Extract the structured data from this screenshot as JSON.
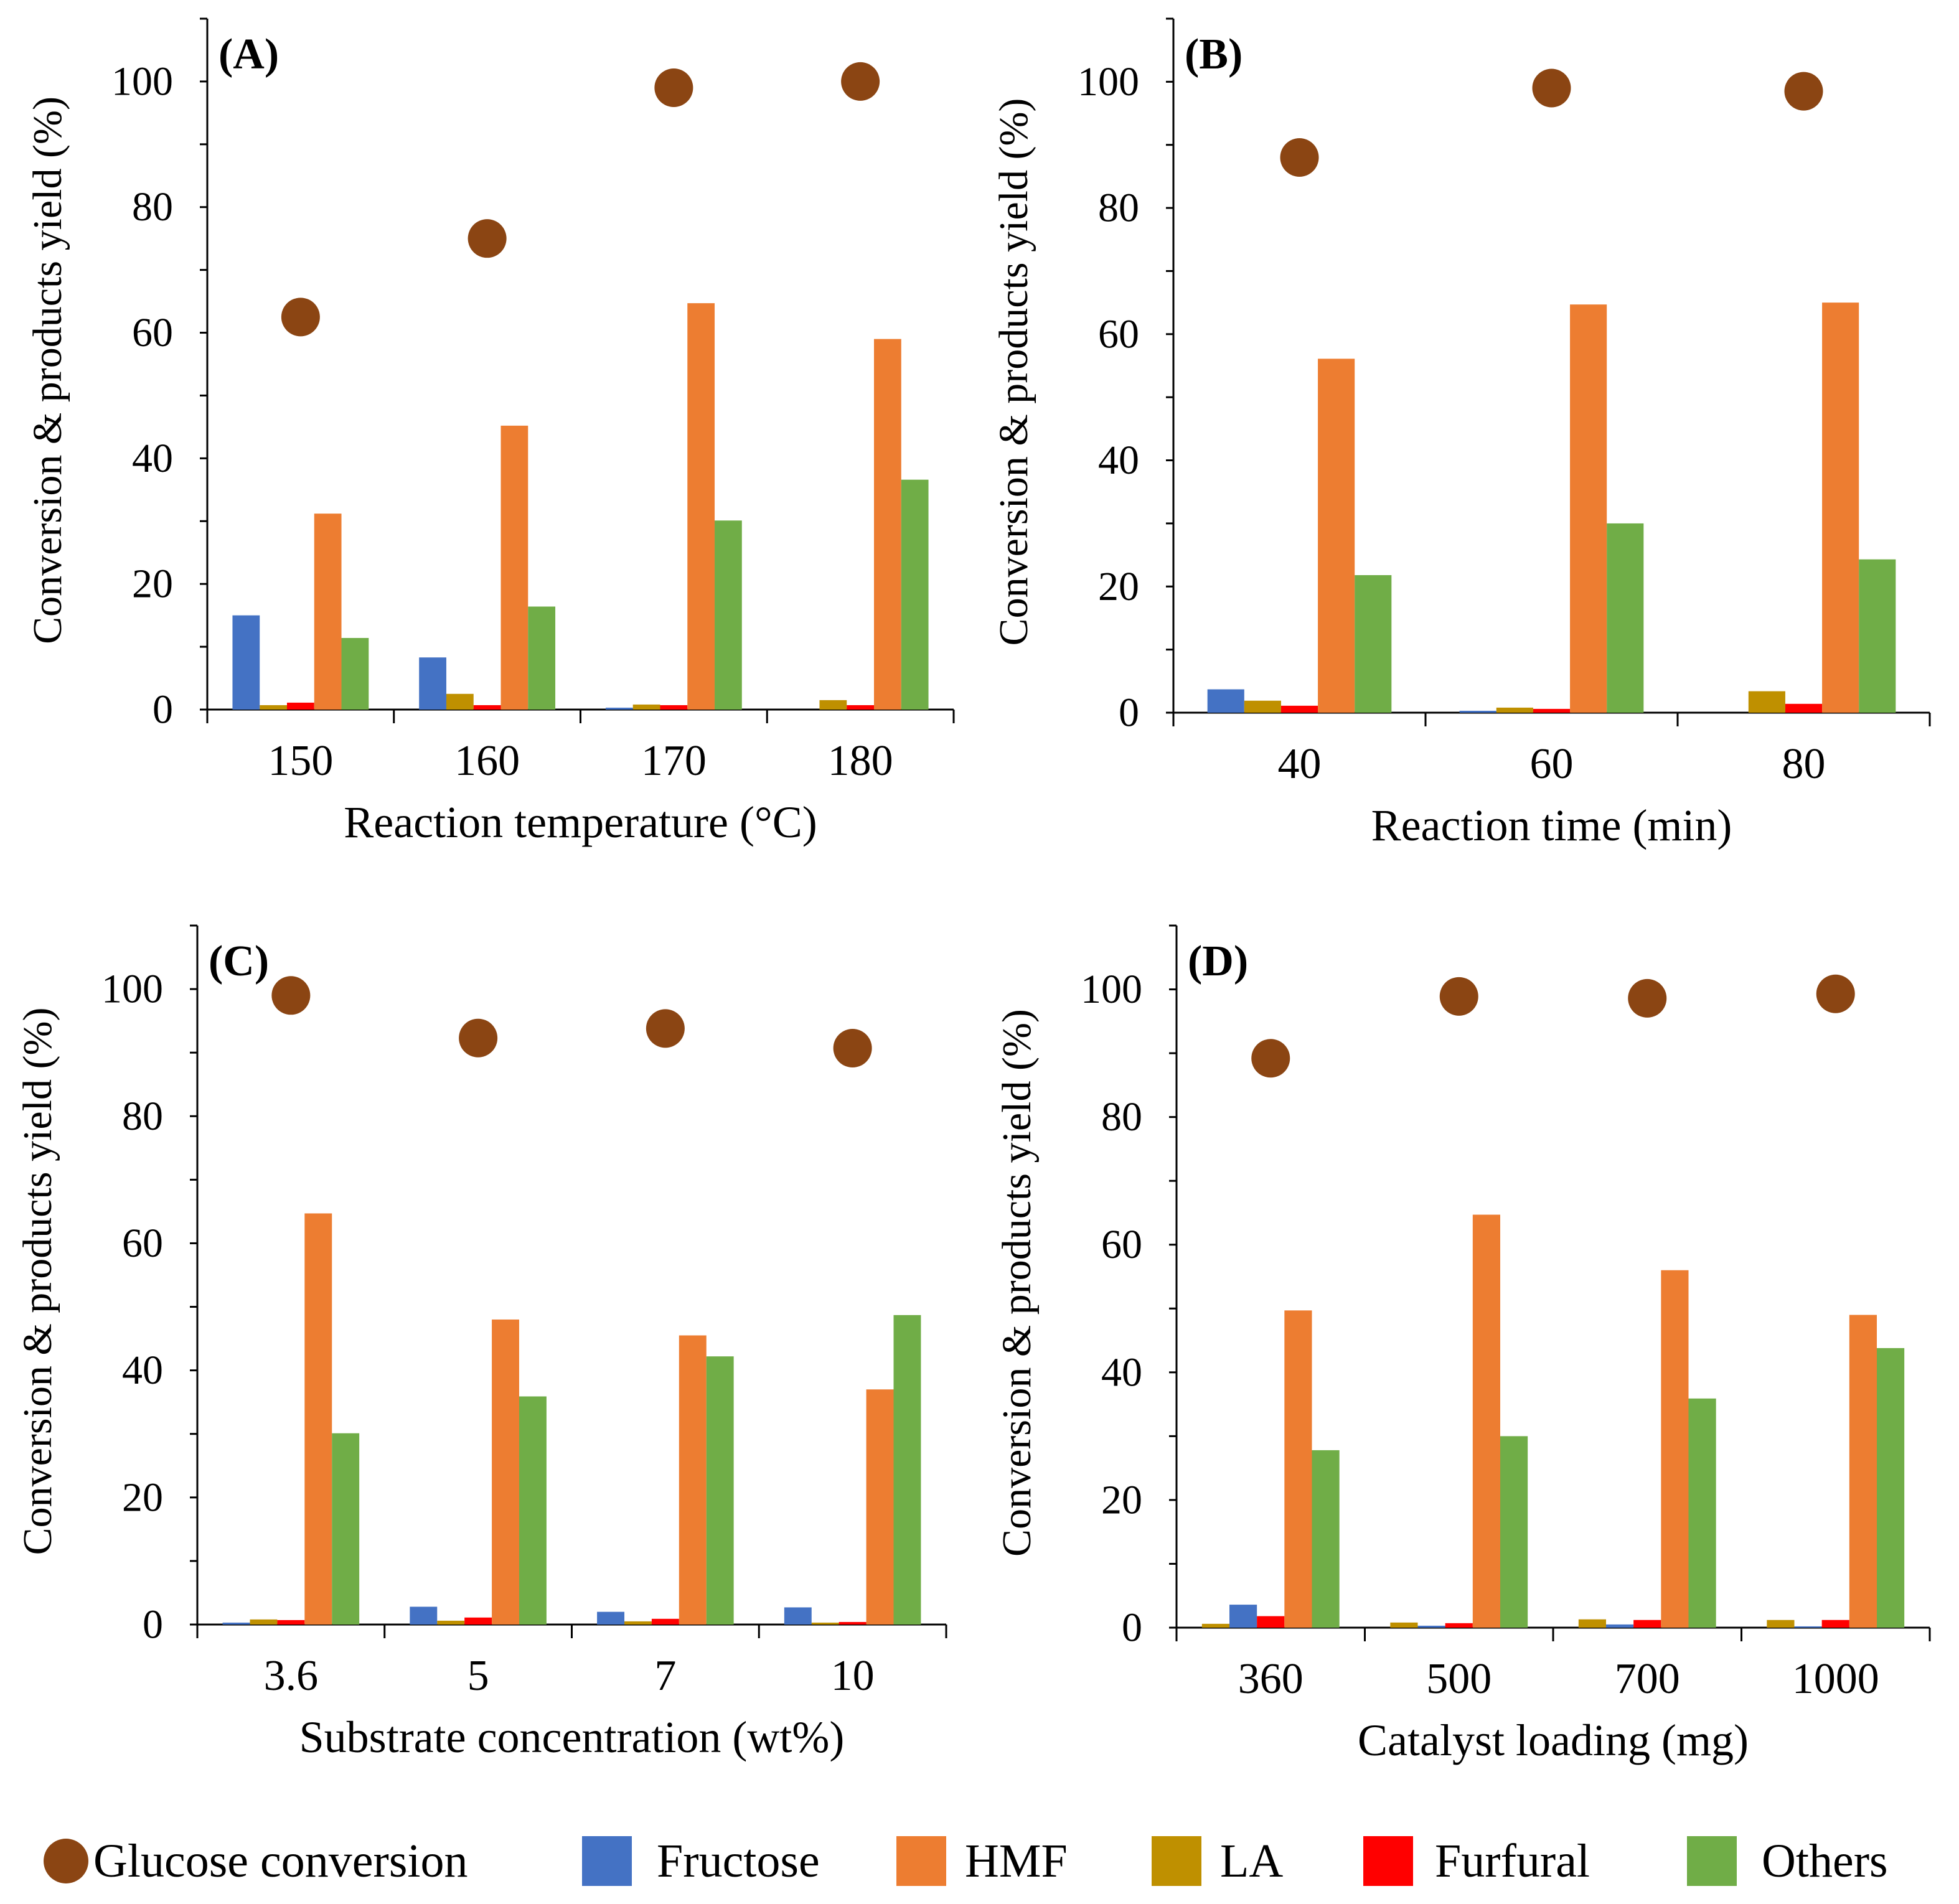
{
  "legend": {
    "items": [
      {
        "key": "glucose",
        "label": "Glucose conversion",
        "color": "#8B4513",
        "marker": "circle"
      },
      {
        "key": "fructose",
        "label": "Fructose",
        "color": "#4472C4",
        "marker": "square"
      },
      {
        "key": "hmf",
        "label": "HMF",
        "color": "#ED7D31",
        "marker": "square"
      },
      {
        "key": "la",
        "label": "LA",
        "color": "#BF9000",
        "marker": "square"
      },
      {
        "key": "furfural",
        "label": "Furfural",
        "color": "#FF0000",
        "marker": "square"
      },
      {
        "key": "others",
        "label": "Others",
        "color": "#70AD47",
        "marker": "square"
      }
    ]
  },
  "chart_data": [
    {
      "type": "bar",
      "panel_label": "(A)",
      "title": "",
      "xlabel": "Reaction temperature (°C)",
      "ylabel": "Conversion & products yield (%)",
      "ylim": [
        0,
        110
      ],
      "yticks": [
        0,
        20,
        40,
        60,
        80,
        100
      ],
      "categories": [
        "150",
        "160",
        "170",
        "180"
      ],
      "series": [
        {
          "name": "Fructose",
          "key": "fructose",
          "values": [
            15,
            8.3,
            0.3,
            0
          ]
        },
        {
          "name": "LA",
          "key": "la",
          "values": [
            0.7,
            2.5,
            0.8,
            1.5
          ]
        },
        {
          "name": "Furfural",
          "key": "furfural",
          "values": [
            1.1,
            0.7,
            0.7,
            0.7
          ]
        },
        {
          "name": "HMF",
          "key": "hmf",
          "values": [
            31.2,
            45.2,
            64.7,
            59
          ]
        },
        {
          "name": "Others",
          "key": "others",
          "values": [
            11.4,
            16.4,
            30.1,
            36.6
          ]
        }
      ],
      "conversion": {
        "name": "Glucose conversion",
        "key": "glucose",
        "values": [
          62.5,
          75,
          99,
          100
        ]
      }
    },
    {
      "type": "bar",
      "panel_label": "(B)",
      "title": "",
      "xlabel": "Reaction time (min)",
      "ylabel": "Conversion & products yield (%)",
      "ylim": [
        0,
        110
      ],
      "yticks": [
        0,
        20,
        40,
        60,
        80,
        100
      ],
      "categories": [
        "40",
        "60",
        "80"
      ],
      "series": [
        {
          "name": "Fructose",
          "key": "fructose",
          "values": [
            3.7,
            0.3,
            0
          ]
        },
        {
          "name": "LA",
          "key": "la",
          "values": [
            1.9,
            0.8,
            3.4
          ]
        },
        {
          "name": "Furfural",
          "key": "furfural",
          "values": [
            1.1,
            0.6,
            1.4
          ]
        },
        {
          "name": "HMF",
          "key": "hmf",
          "values": [
            56.1,
            64.7,
            65
          ]
        },
        {
          "name": "Others",
          "key": "others",
          "values": [
            21.8,
            30,
            24.3
          ]
        }
      ],
      "conversion": {
        "name": "Glucose conversion",
        "key": "glucose",
        "values": [
          88,
          99,
          98.5
        ]
      }
    },
    {
      "type": "bar",
      "panel_label": "(C)",
      "title": "",
      "xlabel": "Substrate concentration (wt%)",
      "ylabel": "Conversion & products yield (%)",
      "ylim": [
        0,
        110
      ],
      "yticks": [
        0,
        20,
        40,
        60,
        80,
        100
      ],
      "categories": [
        "3.6",
        "5",
        "7",
        "10"
      ],
      "series": [
        {
          "name": "Fructose",
          "key": "fructose",
          "values": [
            0.3,
            2.8,
            2,
            2.7
          ]
        },
        {
          "name": "LA",
          "key": "la",
          "values": [
            0.8,
            0.6,
            0.5,
            0.3
          ]
        },
        {
          "name": "Furfural",
          "key": "furfural",
          "values": [
            0.7,
            1.1,
            0.9,
            0.4
          ]
        },
        {
          "name": "HMF",
          "key": "hmf",
          "values": [
            64.7,
            48,
            45.5,
            37
          ]
        },
        {
          "name": "Others",
          "key": "others",
          "values": [
            30.1,
            35.9,
            42.2,
            48.7
          ]
        }
      ],
      "conversion": {
        "name": "Glucose conversion",
        "key": "glucose",
        "values": [
          99,
          92.3,
          93.8,
          90.7
        ]
      }
    },
    {
      "type": "bar",
      "panel_label": "(D)",
      "title": "",
      "xlabel": "Catalyst loading (mg)",
      "ylabel": "Conversion & products yield (%)",
      "ylim": [
        0,
        110
      ],
      "yticks": [
        0,
        20,
        40,
        60,
        80,
        100
      ],
      "categories": [
        "360",
        "500",
        "700",
        "1000"
      ],
      "series": [
        {
          "name": "LA",
          "key": "la",
          "values": [
            0.6,
            0.8,
            1.3,
            1.2
          ]
        },
        {
          "name": "Fructose",
          "key": "fructose",
          "values": [
            3.6,
            0.3,
            0.5,
            0.2
          ]
        },
        {
          "name": "Furfural",
          "key": "furfural",
          "values": [
            1.8,
            0.7,
            1.2,
            1.2
          ]
        },
        {
          "name": "HMF",
          "key": "hmf",
          "values": [
            49.7,
            64.7,
            56,
            49
          ]
        },
        {
          "name": "Others",
          "key": "others",
          "values": [
            27.8,
            30,
            35.9,
            43.8
          ]
        }
      ],
      "conversion": {
        "name": "Glucose conversion",
        "key": "glucose",
        "values": [
          89.2,
          98.9,
          98.6,
          99.3
        ]
      }
    }
  ]
}
